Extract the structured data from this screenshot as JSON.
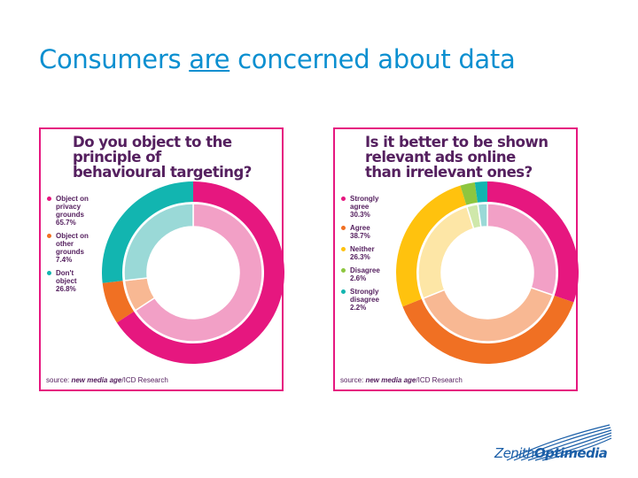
{
  "title": {
    "before": "Consumers ",
    "underlined": "are",
    "after": " concerned about data"
  },
  "logo": {
    "part1": "Zenith",
    "part2": "Optimedia"
  },
  "colors": {
    "title": "#0b8fd0",
    "panel_border": "#e6177f",
    "panel_text": "#55205f"
  },
  "chart_data": [
    {
      "type": "pie",
      "title_lines": [
        "Do you object to the",
        "principle of",
        "behavioural targeting?"
      ],
      "slices": [
        {
          "label": "Object on privacy grounds",
          "value": 65.7,
          "display": "65.7%",
          "color": "#e6177f",
          "inner_color": "#f2a0c6"
        },
        {
          "label": "Object on other grounds",
          "value": 7.4,
          "display": "7.4%",
          "color": "#f07023",
          "inner_color": "#f8b893"
        },
        {
          "label": "Don't object",
          "value": 26.8,
          "display": "26.8%",
          "color": "#12b5b0",
          "inner_color": "#9ad9d7"
        }
      ],
      "source": {
        "prefix": "source: ",
        "publication": "new media age",
        "suffix": "/ICD Research"
      }
    },
    {
      "type": "pie",
      "title_lines": [
        "Is it better to be shown",
        "relevant ads online",
        "than irrelevant ones?"
      ],
      "slices": [
        {
          "label": "Strongly agree",
          "value": 30.3,
          "display": "30.3%",
          "color": "#e6177f",
          "inner_color": "#f2a0c6"
        },
        {
          "label": "Agree",
          "value": 38.7,
          "display": "38.7%",
          "color": "#f07023",
          "inner_color": "#f8b893"
        },
        {
          "label": "Neither",
          "value": 26.3,
          "display": "26.3%",
          "color": "#ffc20e",
          "inner_color": "#fde6a6"
        },
        {
          "label": "Disagree",
          "value": 2.6,
          "display": "2.6%",
          "color": "#8dc63f",
          "inner_color": "#cfe8aa"
        },
        {
          "label": "Strongly disagree",
          "value": 2.2,
          "display": "2.2%",
          "color": "#12b5b0",
          "inner_color": "#9ad9d7"
        }
      ],
      "source": {
        "prefix": "source: ",
        "publication": "new media age",
        "suffix": "/ICD Research"
      }
    }
  ]
}
